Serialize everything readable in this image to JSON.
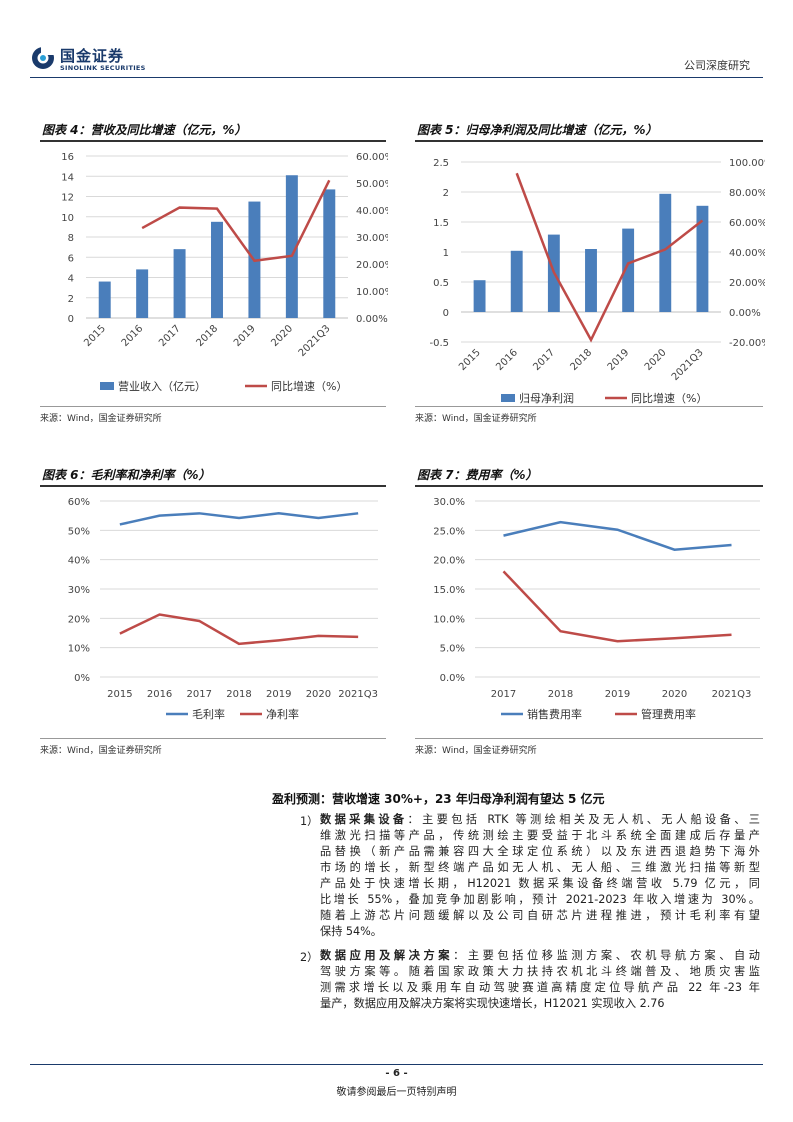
{
  "header": {
    "logo_cn": "国金证券",
    "logo_en": "SINOLINK SECURITIES",
    "right": "公司深度研究"
  },
  "figures": [
    {
      "title": "图表 4：营收及同比增速（亿元，%）",
      "source": "来源：Wind，国金证券研究所",
      "chart_data": {
        "type": "bar",
        "categories": [
          "2015",
          "2016",
          "2017",
          "2018",
          "2019",
          "2020",
          "2021Q3"
        ],
        "series": [
          {
            "name": "营业收入（亿元）",
            "type": "bar",
            "axis": "left",
            "values": [
              3.6,
              4.8,
              6.8,
              9.5,
              11.5,
              14.1,
              12.7
            ]
          },
          {
            "name": "同比增速（%）",
            "type": "line",
            "axis": "right",
            "values": [
              null,
              33.3,
              40.9,
              40.5,
              21.2,
              23.0,
              51.0
            ]
          }
        ],
        "ylim": [
          0,
          16
        ],
        "ylim_right": [
          0,
          60
        ],
        "yticks": [
          "0",
          "2",
          "4",
          "6",
          "8",
          "10",
          "12",
          "14",
          "16"
        ],
        "yticks_right": [
          "0.00%",
          "10.00%",
          "20.00%",
          "30.00%",
          "40.00%",
          "50.00%",
          "60.00%"
        ],
        "legend": "bottom",
        "grid": true
      }
    },
    {
      "title": "图表 5：归母净利润及同比增速（亿元，%）",
      "source": "来源：Wind，国金证券研究所",
      "chart_data": {
        "type": "bar",
        "categories": [
          "2015",
          "2016",
          "2017",
          "2018",
          "2019",
          "2020",
          "2021Q3"
        ],
        "series": [
          {
            "name": "归母净利润",
            "type": "bar",
            "axis": "left",
            "values": [
              0.53,
              1.02,
              1.29,
              1.05,
              1.39,
              1.97,
              1.77
            ]
          },
          {
            "name": "同比增速（%）",
            "type": "line",
            "axis": "right",
            "values": [
              null,
              92.5,
              26.5,
              -18.6,
              32.4,
              41.7,
              61.0
            ]
          }
        ],
        "ylim": [
          -0.5,
          2.5
        ],
        "ylim_right": [
          -20,
          100
        ],
        "yticks": [
          "-0.5",
          "0",
          "0.5",
          "1",
          "1.5",
          "2",
          "2.5"
        ],
        "yticks_right": [
          "-20.00%",
          "0.00%",
          "20.00%",
          "40.00%",
          "60.00%",
          "80.00%",
          "100.00%"
        ],
        "legend": "bottom",
        "grid": true
      }
    },
    {
      "title": "图表 6：毛利率和净利率（%）",
      "source": "来源：Wind，国金证券研究所",
      "chart_data": {
        "type": "line",
        "categories": [
          "2015",
          "2016",
          "2017",
          "2018",
          "2019",
          "2020",
          "2021Q3"
        ],
        "series": [
          {
            "name": "毛利率",
            "values": [
              52.0,
              55.0,
              55.8,
              54.2,
              55.8,
              54.2,
              55.8
            ]
          },
          {
            "name": "净利率",
            "values": [
              14.8,
              21.3,
              19.1,
              11.3,
              12.5,
              14.0,
              13.7
            ]
          }
        ],
        "ylim": [
          0,
          60
        ],
        "yticks": [
          "0%",
          "10%",
          "20%",
          "30%",
          "40%",
          "50%",
          "60%"
        ],
        "legend": "bottom",
        "grid": true
      }
    },
    {
      "title": "图表 7：费用率（%）",
      "source": "来源：Wind，国金证券研究所",
      "chart_data": {
        "type": "line",
        "categories": [
          "2017",
          "2018",
          "2019",
          "2020",
          "2021Q3"
        ],
        "series": [
          {
            "name": "销售费用率",
            "values": [
              24.1,
              26.4,
              25.1,
              21.7,
              22.5
            ]
          },
          {
            "name": "管理费用率",
            "values": [
              18.0,
              7.8,
              6.1,
              6.6,
              7.2
            ]
          }
        ],
        "ylim": [
          0,
          30
        ],
        "yticks": [
          "0.0%",
          "5.0%",
          "10.0%",
          "15.0%",
          "20.0%",
          "25.0%",
          "30.0%"
        ],
        "legend": "bottom",
        "grid": true
      }
    }
  ],
  "section": {
    "title": "盈利预测：营收增速 30%+，23 年归母净利润有望达 5 亿元",
    "items": [
      {
        "num": "1）",
        "lines": [
          {
            "bold": "数据采集设备",
            "text": "：主要包括 RTK 等测绘相关及无人机、无人船设备、三"
          },
          {
            "text": "维激光扫描等产品，传统测绘主要受益于北斗系统全面建成后存量产"
          },
          {
            "text": "品替换（新产品需兼容四大全球定位系统）以及东进西退趋势下海外"
          },
          {
            "text": "市场的增长，新型终端产品如无人机、无人船、三维激光扫描等新型"
          },
          {
            "text": "产品处于快速增长期，H12021 数据采集设备终端营收 5.79 亿元，同"
          },
          {
            "text": "比增长 55%，叠加竞争加剧影响，预计 2021-2023 年收入增速为 30%。"
          },
          {
            "text": "随着上游芯片问题缓解以及公司自研芯片进程推进，预计毛利率有望"
          },
          {
            "text": "保持 54%。"
          }
        ]
      },
      {
        "num": "2）",
        "lines": [
          {
            "bold": "数据应用及解决方案",
            "text": "：主要包括位移监测方案、农机导航方案、自动"
          },
          {
            "text": "驾驶方案等。随着国家政策大力扶持农机北斗终端普及、地质灾害监"
          },
          {
            "text": "测需求增长以及乘用车自动驾驶赛道高精度定位导航产品 22 年-23 年"
          },
          {
            "text": "量产，数据应用及解决方案将实现快速增长，H12021 实现收入 2.76"
          }
        ]
      }
    ]
  },
  "footer": {
    "page": "- 6 -",
    "note": "敬请参阅最后一页特别声明"
  },
  "colors": {
    "bar": "#4a7ebb",
    "line_red": "#be4b48",
    "line_blue": "#4a7ebb",
    "brand": "#1a3a6b"
  }
}
